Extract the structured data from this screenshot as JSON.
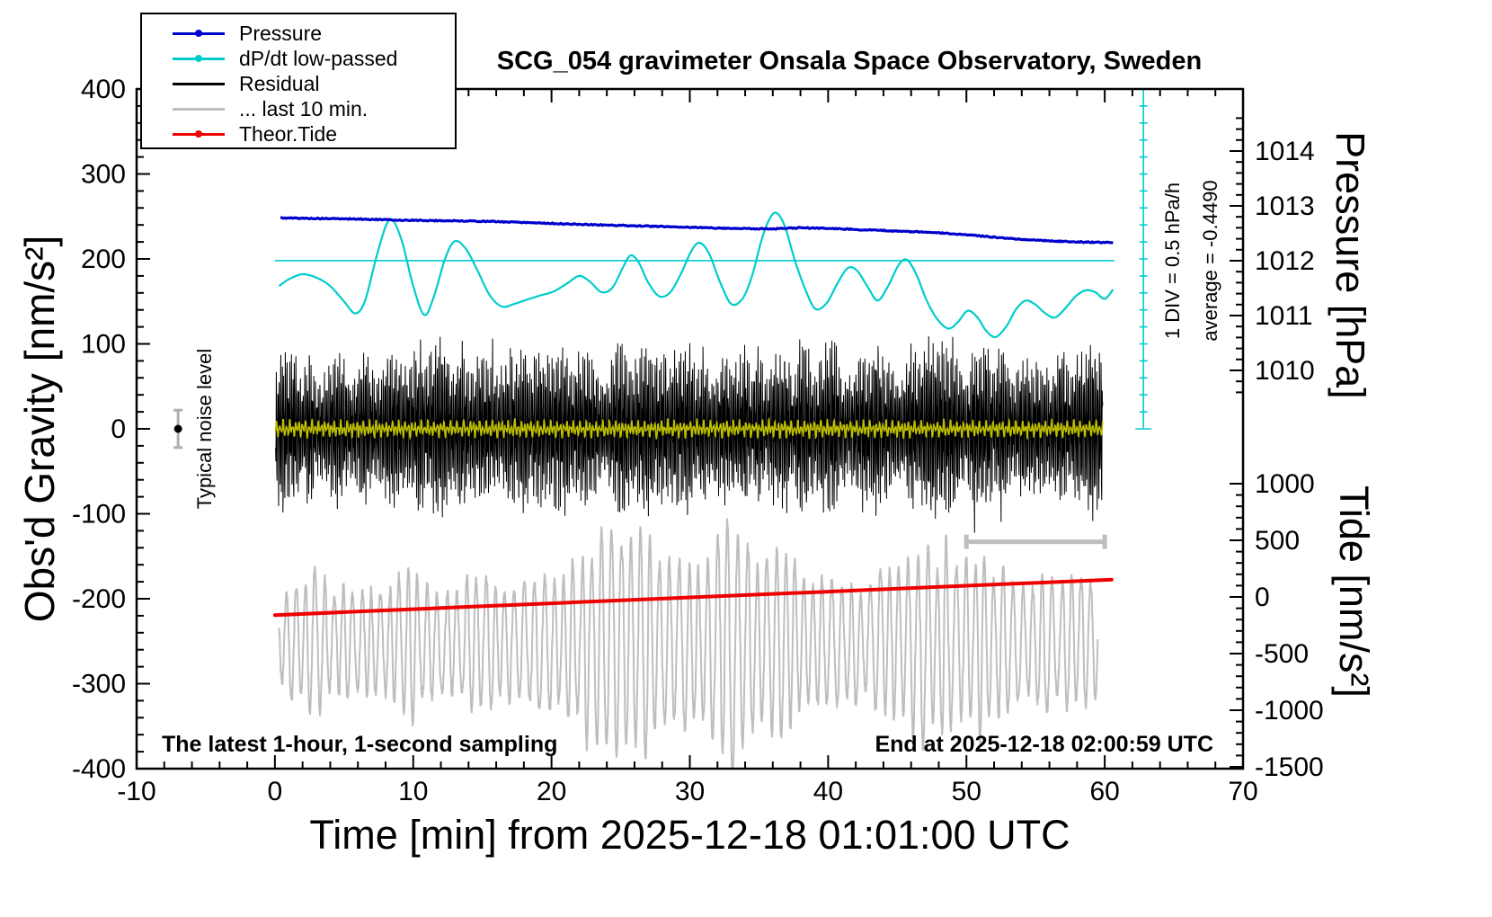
{
  "chart_data": {
    "type": "line",
    "title": "SCG_054 gravimeter Onsala Space Observatory, Sweden",
    "xlabel": "Time [min] from 2025-12-18 01:01:00 UTC",
    "ylabel_left": "Obs'd Gravity [nm/s²]",
    "ylabel_right_top": "Pressure [hPa]",
    "ylabel_right_bottom": "Tide [nm/s²]",
    "annotations": {
      "sampling_note": "The latest 1-hour, 1-second sampling",
      "end_note": "End at 2025-12-18 02:00:59 UTC",
      "div_scale": "1 DIV = 0.5 hPa/h",
      "average": "average = -0.4490",
      "noise_label": "Typical noise level"
    },
    "axes": {
      "x": {
        "min": -10,
        "max": 70,
        "major_ticks": [
          -10,
          0,
          10,
          20,
          30,
          40,
          50,
          60,
          70
        ],
        "minor_step": 2
      },
      "gravity": {
        "min": -400,
        "max": 400,
        "major_ticks": [
          400,
          300,
          200,
          100,
          0,
          -100,
          -200,
          -300,
          -400
        ],
        "minor_step": 20
      },
      "pressure": {
        "major_ticks": [
          1014,
          1013,
          1012,
          1011,
          1010
        ],
        "minor_step": 0.2,
        "range": [
          1009.6,
          1014.6
        ]
      },
      "tide": {
        "major_ticks": [
          1000,
          500,
          0,
          -500,
          -1000,
          -1500
        ],
        "minor_step": 100,
        "range": [
          -1500,
          1000
        ]
      }
    },
    "legend": [
      {
        "label": "Pressure",
        "color": "#0000cc",
        "marker": "line-dot"
      },
      {
        "label": "dP/dt low-passed",
        "color": "#00cccc",
        "marker": "line-dot"
      },
      {
        "label": "Residual",
        "color": "#000000",
        "marker": "line"
      },
      {
        "label": "... last 10 min.",
        "color": "#bebebe",
        "marker": "line"
      },
      {
        "label": "Theor.Tide",
        "color": "#ee0000",
        "marker": "line-dot"
      }
    ],
    "series": {
      "pressure": {
        "color": "#0000cc",
        "unit": "hPa",
        "points": [
          [
            0.4,
            1012.78
          ],
          [
            3,
            1012.77
          ],
          [
            6,
            1012.76
          ],
          [
            9,
            1012.74
          ],
          [
            12,
            1012.73
          ],
          [
            15,
            1012.72
          ],
          [
            18,
            1012.7
          ],
          [
            21,
            1012.67
          ],
          [
            24,
            1012.65
          ],
          [
            27,
            1012.63
          ],
          [
            30,
            1012.61
          ],
          [
            33,
            1012.59
          ],
          [
            36,
            1012.58
          ],
          [
            38,
            1012.6
          ],
          [
            40,
            1012.59
          ],
          [
            42,
            1012.57
          ],
          [
            44,
            1012.55
          ],
          [
            46,
            1012.53
          ],
          [
            48,
            1012.51
          ],
          [
            50,
            1012.47
          ],
          [
            52,
            1012.43
          ],
          [
            54,
            1012.39
          ],
          [
            55.5,
            1012.37
          ],
          [
            57,
            1012.35
          ],
          [
            58.5,
            1012.34
          ],
          [
            60.6,
            1012.33
          ]
        ]
      },
      "dpdt": {
        "color": "#00cccc",
        "zero_level_gravity": 198,
        "points": [
          [
            0.3,
            168
          ],
          [
            1,
            176
          ],
          [
            2,
            182
          ],
          [
            3,
            178
          ],
          [
            4,
            168
          ],
          [
            5,
            150
          ],
          [
            5.8,
            136
          ],
          [
            6.5,
            150
          ],
          [
            7.3,
            200
          ],
          [
            8,
            238
          ],
          [
            8.5,
            246
          ],
          [
            9.2,
            220
          ],
          [
            10,
            168
          ],
          [
            10.8,
            134
          ],
          [
            11.5,
            156
          ],
          [
            12.3,
            200
          ],
          [
            13,
            221
          ],
          [
            13.8,
            212
          ],
          [
            14.6,
            188
          ],
          [
            15.5,
            158
          ],
          [
            16.4,
            144
          ],
          [
            17.3,
            147
          ],
          [
            18.2,
            152
          ],
          [
            19.2,
            157
          ],
          [
            20.2,
            162
          ],
          [
            21.2,
            172
          ],
          [
            22,
            180
          ],
          [
            22.8,
            173
          ],
          [
            23.6,
            161
          ],
          [
            24.4,
            166
          ],
          [
            25.1,
            188
          ],
          [
            25.7,
            204
          ],
          [
            26.3,
            196
          ],
          [
            27,
            172
          ],
          [
            27.8,
            156
          ],
          [
            28.6,
            161
          ],
          [
            29.4,
            184
          ],
          [
            30.1,
            209
          ],
          [
            30.7,
            219
          ],
          [
            31.4,
            206
          ],
          [
            32.2,
            172
          ],
          [
            33,
            147
          ],
          [
            33.8,
            153
          ],
          [
            34.5,
            180
          ],
          [
            35.2,
            223
          ],
          [
            35.8,
            248
          ],
          [
            36.3,
            254
          ],
          [
            36.9,
            237
          ],
          [
            37.6,
            198
          ],
          [
            38.4,
            162
          ],
          [
            39.1,
            141
          ],
          [
            39.9,
            148
          ],
          [
            40.6,
            169
          ],
          [
            41.4,
            189
          ],
          [
            42.1,
            186
          ],
          [
            42.9,
            166
          ],
          [
            43.6,
            151
          ],
          [
            44.4,
            170
          ],
          [
            45.1,
            193
          ],
          [
            45.7,
            199
          ],
          [
            46.4,
            181
          ],
          [
            47.1,
            152
          ],
          [
            47.9,
            129
          ],
          [
            48.7,
            118
          ],
          [
            49.4,
            126
          ],
          [
            50.1,
            139
          ],
          [
            50.8,
            131
          ],
          [
            51.4,
            116
          ],
          [
            52.1,
            108
          ],
          [
            52.9,
            121
          ],
          [
            53.6,
            141
          ],
          [
            54.3,
            151
          ],
          [
            55,
            146
          ],
          [
            55.7,
            136
          ],
          [
            56.4,
            131
          ],
          [
            57.1,
            141
          ],
          [
            57.9,
            156
          ],
          [
            58.6,
            163
          ],
          [
            59.3,
            161
          ],
          [
            60,
            153
          ],
          [
            60.6,
            164
          ]
        ]
      },
      "dpdt_scale_bar": {
        "divisions": 20,
        "x_position_min": 62.8,
        "gravity_top": 400,
        "gravity_bottom": 0
      },
      "residual": {
        "color": "#000000",
        "t_start": 0.05,
        "t_end": 59.85,
        "envelope_min": 35,
        "envelope_max": 75,
        "spike_max": 168
      },
      "residual_smoothed": {
        "color": "#bdbf00",
        "amplitude": 11,
        "t_start": 0.05,
        "t_end": 59.85
      },
      "last10": {
        "color": "#bebebe",
        "base_level": -252,
        "period_min": 0.7,
        "t_start": 0.3,
        "t_end": 59.5,
        "amplitude_keypoints": [
          [
            0.3,
            60
          ],
          [
            3,
            75
          ],
          [
            6,
            55
          ],
          [
            9,
            85
          ],
          [
            12,
            70
          ],
          [
            15,
            75
          ],
          [
            18,
            65
          ],
          [
            21,
            90
          ],
          [
            24,
            120
          ],
          [
            26,
            135
          ],
          [
            28,
            95
          ],
          [
            31,
            95
          ],
          [
            33,
            140
          ],
          [
            35,
            95
          ],
          [
            37,
            110
          ],
          [
            39,
            85
          ],
          [
            41,
            75
          ],
          [
            43,
            65
          ],
          [
            45,
            90
          ],
          [
            47,
            105
          ],
          [
            49,
            115
          ],
          [
            51,
            100
          ],
          [
            53,
            85
          ],
          [
            55,
            75
          ],
          [
            57,
            70
          ],
          [
            59.5,
            65
          ]
        ]
      },
      "last10_scale_bar": {
        "t_start": 50,
        "t_end": 60,
        "gravity_level": -133
      },
      "tide": {
        "color": "#ee0000",
        "unit": "nm/s²",
        "points": [
          [
            0,
            -160
          ],
          [
            10,
            -108
          ],
          [
            20,
            -56
          ],
          [
            30,
            -4
          ],
          [
            40,
            47
          ],
          [
            50,
            99
          ],
          [
            60.5,
            152
          ]
        ]
      },
      "noise_marker": {
        "t": -7,
        "gravity": 0,
        "bar_half_height": 22
      }
    }
  }
}
